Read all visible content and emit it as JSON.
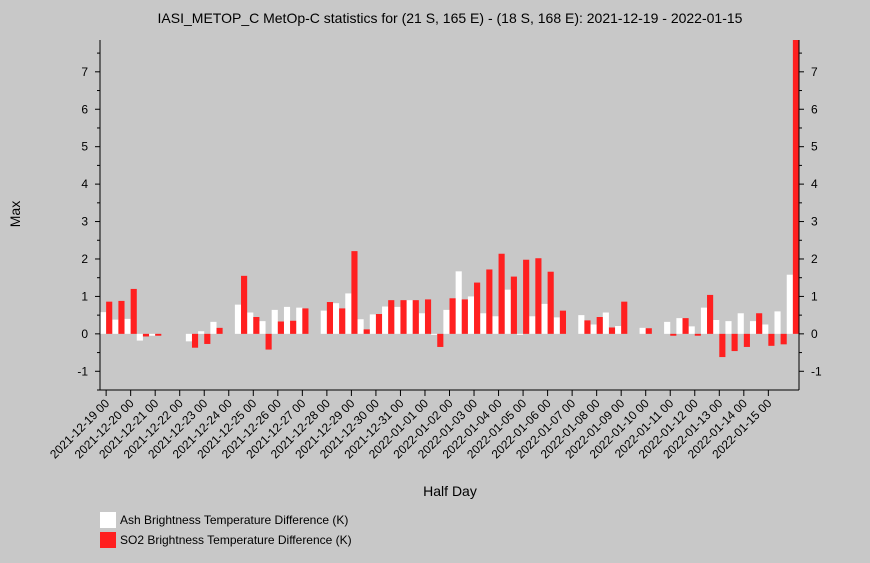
{
  "chart_data": {
    "type": "bar",
    "title": "IASI_METOP_C MetOp-C statistics for (21 S, 165 E) - (18 S, 168 E): 2021-12-19 - 2022-01-15",
    "xlabel": "Half Day",
    "ylabel": "Max",
    "ylim": [
      -1.5,
      7.85
    ],
    "yticks": [
      -1,
      0,
      1,
      2,
      3,
      4,
      5,
      6,
      7
    ],
    "grid": false,
    "legend_position": "bottom-left",
    "tick_labels": [
      "2021-12-19 00",
      "2021-12-20 00",
      "2021-12-21 00",
      "2021-12-22 00",
      "2021-12-23 00",
      "2021-12-24 00",
      "2021-12-25 00",
      "2021-12-26 00",
      "2021-12-27 00",
      "2021-12-28 00",
      "2021-12-29 00",
      "2021-12-30 00",
      "2021-12-31 00",
      "2022-01-01 00",
      "2022-01-02 00",
      "2022-01-03 00",
      "2022-01-04 00",
      "2022-01-05 00",
      "2022-01-06 00",
      "2022-01-07 00",
      "2022-01-08 00",
      "2022-01-09 00",
      "2022-01-10 00",
      "2022-01-11 00",
      "2022-01-12 00",
      "2022-01-13 00",
      "2022-01-14 00",
      "2022-01-15 00"
    ],
    "series": [
      {
        "name": "Ash Brightness Temperature Difference (K)",
        "color": "#ffffff",
        "values": [
          0.58,
          0.38,
          0.4,
          -0.18,
          -0.05,
          null,
          null,
          -0.2,
          0.07,
          0.32,
          null,
          0.78,
          0.57,
          0.34,
          0.64,
          0.72,
          0.7,
          null,
          0.62,
          0.82,
          1.08,
          0.39,
          0.52,
          0.73,
          0.72,
          0.9,
          0.55,
          0.0,
          0.64,
          1.67,
          1.0,
          0.55,
          0.47,
          1.18,
          0.0,
          0.47,
          0.8,
          0.44,
          null,
          0.5,
          0.25,
          0.57,
          0.21,
          null,
          0.16,
          null,
          0.32,
          0.42,
          0.2,
          0.7,
          0.37,
          0.34,
          0.55,
          0.34,
          0.25,
          0.6,
          1.58
        ]
      },
      {
        "name": "SO2 Brightness Temperature Difference (K)",
        "color": "#ff2020",
        "values": [
          0.86,
          0.88,
          1.2,
          -0.07,
          -0.05,
          null,
          null,
          -0.37,
          -0.27,
          0.16,
          null,
          1.55,
          0.45,
          -0.42,
          0.33,
          0.35,
          0.68,
          null,
          0.85,
          0.68,
          2.21,
          0.12,
          0.53,
          0.9,
          0.9,
          0.9,
          0.92,
          -0.35,
          0.95,
          0.92,
          1.37,
          1.72,
          2.14,
          1.53,
          1.98,
          2.02,
          1.66,
          0.62,
          null,
          0.36,
          0.45,
          0.17,
          0.86,
          null,
          0.15,
          null,
          -0.05,
          0.42,
          -0.05,
          1.04,
          -0.62,
          -0.46,
          -0.35,
          0.55,
          -0.32,
          -0.28,
          7.85
        ]
      }
    ]
  },
  "legend": [
    {
      "label": "Ash Brightness Temperature Difference (K)",
      "color": "#ffffff"
    },
    {
      "label": "SO2 Brightness Temperature Difference (K)",
      "color": "#ff2020"
    }
  ]
}
